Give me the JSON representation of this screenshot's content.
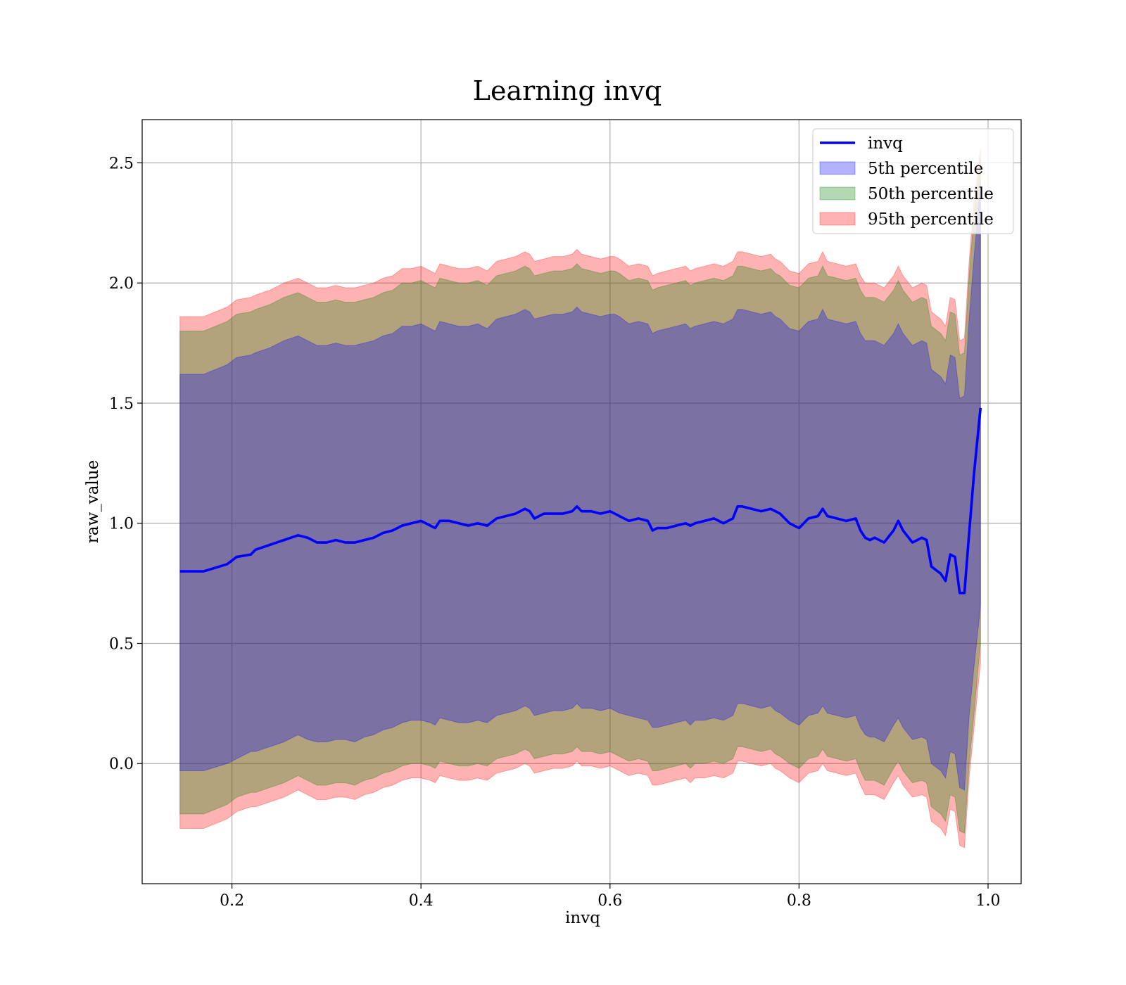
{
  "chart_data": {
    "type": "line",
    "title": "Learning invq",
    "xlabel": "invq",
    "ylabel": "raw_value",
    "xlim": [
      0.105,
      1.035
    ],
    "ylim": [
      -0.5,
      2.68
    ],
    "xticks": [
      0.2,
      0.4,
      0.6,
      0.8,
      1.0
    ],
    "xtick_labels": [
      "0.2",
      "0.4",
      "0.6",
      "0.8",
      "1.0"
    ],
    "yticks": [
      0.0,
      0.5,
      1.0,
      1.5,
      2.0,
      2.5
    ],
    "ytick_labels": [
      "0.0",
      "0.5",
      "1.0",
      "1.5",
      "2.0",
      "2.5"
    ],
    "grid": true,
    "legend_position": "top-right",
    "x": [
      0.145,
      0.17,
      0.195,
      0.205,
      0.22,
      0.225,
      0.24,
      0.255,
      0.27,
      0.28,
      0.29,
      0.3,
      0.31,
      0.32,
      0.33,
      0.34,
      0.35,
      0.36,
      0.37,
      0.38,
      0.39,
      0.4,
      0.41,
      0.415,
      0.42,
      0.43,
      0.44,
      0.45,
      0.46,
      0.47,
      0.48,
      0.49,
      0.5,
      0.51,
      0.515,
      0.52,
      0.53,
      0.54,
      0.55,
      0.56,
      0.565,
      0.57,
      0.58,
      0.59,
      0.6,
      0.605,
      0.61,
      0.62,
      0.63,
      0.64,
      0.645,
      0.65,
      0.66,
      0.67,
      0.68,
      0.685,
      0.69,
      0.7,
      0.71,
      0.72,
      0.73,
      0.735,
      0.74,
      0.75,
      0.76,
      0.77,
      0.775,
      0.78,
      0.79,
      0.8,
      0.81,
      0.82,
      0.825,
      0.83,
      0.84,
      0.85,
      0.86,
      0.865,
      0.87,
      0.875,
      0.88,
      0.89,
      0.9,
      0.905,
      0.91,
      0.92,
      0.93,
      0.935,
      0.94,
      0.95,
      0.955,
      0.96,
      0.965,
      0.97,
      0.975,
      0.98,
      0.985,
      0.99,
      0.992
    ],
    "series": [
      {
        "name": "invq",
        "color": "#0000ff",
        "values": [
          0.8,
          0.8,
          0.83,
          0.86,
          0.87,
          0.89,
          0.91,
          0.93,
          0.95,
          0.94,
          0.92,
          0.92,
          0.93,
          0.92,
          0.92,
          0.93,
          0.94,
          0.96,
          0.97,
          0.99,
          1.0,
          1.01,
          0.99,
          0.98,
          1.01,
          1.01,
          1.0,
          0.99,
          1.0,
          0.99,
          1.02,
          1.03,
          1.04,
          1.06,
          1.05,
          1.02,
          1.04,
          1.04,
          1.04,
          1.05,
          1.07,
          1.05,
          1.05,
          1.04,
          1.05,
          1.04,
          1.03,
          1.01,
          1.02,
          1.01,
          0.97,
          0.98,
          0.98,
          0.99,
          1.0,
          0.99,
          1.0,
          1.01,
          1.02,
          1.0,
          1.02,
          1.07,
          1.07,
          1.06,
          1.05,
          1.06,
          1.05,
          1.04,
          1.0,
          0.98,
          1.02,
          1.03,
          1.06,
          1.03,
          1.02,
          1.01,
          1.02,
          0.97,
          0.94,
          0.93,
          0.94,
          0.92,
          0.97,
          1.01,
          0.97,
          0.92,
          0.94,
          0.93,
          0.82,
          0.79,
          0.76,
          0.87,
          0.86,
          0.71,
          0.71,
          0.96,
          1.2,
          1.4,
          1.48
        ]
      },
      {
        "name": "5th percentile",
        "color": "#0000ff",
        "lower": [
          -0.03,
          -0.03,
          0.0,
          0.02,
          0.05,
          0.05,
          0.07,
          0.09,
          0.12,
          0.1,
          0.09,
          0.09,
          0.1,
          0.1,
          0.09,
          0.11,
          0.12,
          0.14,
          0.15,
          0.17,
          0.18,
          0.18,
          0.17,
          0.16,
          0.19,
          0.18,
          0.17,
          0.17,
          0.18,
          0.17,
          0.2,
          0.21,
          0.22,
          0.24,
          0.23,
          0.2,
          0.21,
          0.22,
          0.22,
          0.23,
          0.25,
          0.23,
          0.23,
          0.22,
          0.23,
          0.22,
          0.21,
          0.2,
          0.19,
          0.18,
          0.15,
          0.15,
          0.16,
          0.17,
          0.18,
          0.16,
          0.18,
          0.18,
          0.19,
          0.18,
          0.2,
          0.25,
          0.25,
          0.24,
          0.23,
          0.24,
          0.22,
          0.21,
          0.18,
          0.16,
          0.2,
          0.21,
          0.24,
          0.21,
          0.2,
          0.19,
          0.2,
          0.15,
          0.12,
          0.11,
          0.11,
          0.09,
          0.16,
          0.19,
          0.15,
          0.1,
          0.11,
          0.1,
          0.0,
          -0.03,
          -0.06,
          0.05,
          0.04,
          -0.1,
          -0.11,
          0.2,
          0.4,
          0.58,
          0.66
        ],
        "upper": [
          1.62,
          1.62,
          1.66,
          1.69,
          1.7,
          1.71,
          1.73,
          1.76,
          1.78,
          1.76,
          1.74,
          1.74,
          1.75,
          1.74,
          1.74,
          1.75,
          1.76,
          1.78,
          1.79,
          1.82,
          1.82,
          1.83,
          1.81,
          1.8,
          1.84,
          1.83,
          1.82,
          1.82,
          1.83,
          1.81,
          1.85,
          1.86,
          1.87,
          1.89,
          1.88,
          1.85,
          1.86,
          1.87,
          1.87,
          1.88,
          1.9,
          1.88,
          1.87,
          1.86,
          1.87,
          1.87,
          1.86,
          1.83,
          1.84,
          1.83,
          1.79,
          1.8,
          1.81,
          1.82,
          1.83,
          1.81,
          1.82,
          1.83,
          1.84,
          1.83,
          1.85,
          1.89,
          1.89,
          1.88,
          1.87,
          1.88,
          1.86,
          1.85,
          1.81,
          1.8,
          1.84,
          1.85,
          1.89,
          1.85,
          1.84,
          1.83,
          1.84,
          1.79,
          1.76,
          1.76,
          1.76,
          1.74,
          1.79,
          1.83,
          1.79,
          1.74,
          1.76,
          1.75,
          1.64,
          1.61,
          1.58,
          1.7,
          1.69,
          1.52,
          1.53,
          1.85,
          2.1,
          2.32,
          2.42
        ]
      },
      {
        "name": "50th percentile",
        "color": "#008000",
        "lower": [
          -0.21,
          -0.21,
          -0.17,
          -0.14,
          -0.12,
          -0.12,
          -0.1,
          -0.08,
          -0.05,
          -0.07,
          -0.09,
          -0.09,
          -0.08,
          -0.08,
          -0.09,
          -0.07,
          -0.06,
          -0.04,
          -0.03,
          -0.01,
          0.0,
          0.0,
          -0.01,
          -0.02,
          0.01,
          0.0,
          -0.01,
          -0.01,
          0.0,
          -0.01,
          0.02,
          0.03,
          0.04,
          0.06,
          0.05,
          0.02,
          0.03,
          0.04,
          0.04,
          0.05,
          0.07,
          0.05,
          0.05,
          0.04,
          0.05,
          0.04,
          0.03,
          0.01,
          0.02,
          0.01,
          -0.03,
          -0.03,
          -0.02,
          -0.01,
          0.0,
          -0.02,
          0.0,
          0.0,
          0.01,
          0.0,
          0.02,
          0.07,
          0.07,
          0.06,
          0.05,
          0.06,
          0.04,
          0.03,
          0.0,
          -0.02,
          0.02,
          0.03,
          0.06,
          0.03,
          0.02,
          0.01,
          0.02,
          -0.03,
          -0.07,
          -0.07,
          -0.07,
          -0.09,
          -0.02,
          0.01,
          -0.03,
          -0.08,
          -0.07,
          -0.08,
          -0.18,
          -0.21,
          -0.24,
          -0.13,
          -0.14,
          -0.28,
          -0.29,
          0.0,
          0.2,
          0.42,
          0.5
        ],
        "upper": [
          1.8,
          1.8,
          1.84,
          1.87,
          1.88,
          1.89,
          1.91,
          1.94,
          1.96,
          1.94,
          1.92,
          1.92,
          1.93,
          1.92,
          1.92,
          1.93,
          1.94,
          1.96,
          1.97,
          2.0,
          2.0,
          2.01,
          1.99,
          1.98,
          2.02,
          2.01,
          2.0,
          2.0,
          2.01,
          1.99,
          2.03,
          2.04,
          2.05,
          2.07,
          2.06,
          2.03,
          2.04,
          2.05,
          2.05,
          2.06,
          2.08,
          2.06,
          2.05,
          2.04,
          2.05,
          2.05,
          2.04,
          2.01,
          2.02,
          2.01,
          1.97,
          1.98,
          1.99,
          2.0,
          2.01,
          1.99,
          2.0,
          2.01,
          2.02,
          2.01,
          2.03,
          2.07,
          2.07,
          2.06,
          2.05,
          2.06,
          2.04,
          2.03,
          1.99,
          1.98,
          2.02,
          2.03,
          2.07,
          2.03,
          2.02,
          2.01,
          2.02,
          1.97,
          1.94,
          1.94,
          1.94,
          1.92,
          1.97,
          2.01,
          1.97,
          1.92,
          1.94,
          1.93,
          1.82,
          1.79,
          1.76,
          1.88,
          1.87,
          1.7,
          1.71,
          2.03,
          2.28,
          2.45,
          2.52
        ]
      },
      {
        "name": "95th percentile",
        "color": "#ff0000",
        "lower": [
          -0.27,
          -0.27,
          -0.23,
          -0.2,
          -0.18,
          -0.18,
          -0.16,
          -0.14,
          -0.11,
          -0.13,
          -0.15,
          -0.15,
          -0.14,
          -0.14,
          -0.15,
          -0.13,
          -0.12,
          -0.1,
          -0.09,
          -0.07,
          -0.06,
          -0.06,
          -0.07,
          -0.08,
          -0.05,
          -0.06,
          -0.07,
          -0.07,
          -0.06,
          -0.07,
          -0.04,
          -0.03,
          -0.02,
          0.0,
          -0.01,
          -0.04,
          -0.03,
          -0.02,
          -0.02,
          -0.01,
          0.01,
          -0.01,
          -0.01,
          -0.02,
          -0.01,
          -0.02,
          -0.03,
          -0.05,
          -0.04,
          -0.05,
          -0.09,
          -0.09,
          -0.08,
          -0.07,
          -0.06,
          -0.08,
          -0.06,
          -0.06,
          -0.05,
          -0.06,
          -0.04,
          0.01,
          0.01,
          0.0,
          -0.01,
          0.0,
          -0.02,
          -0.03,
          -0.06,
          -0.08,
          -0.04,
          -0.03,
          0.0,
          -0.03,
          -0.04,
          -0.05,
          -0.04,
          -0.09,
          -0.13,
          -0.13,
          -0.13,
          -0.15,
          -0.08,
          -0.05,
          -0.09,
          -0.14,
          -0.13,
          -0.14,
          -0.24,
          -0.27,
          -0.3,
          -0.19,
          -0.2,
          -0.34,
          -0.35,
          -0.06,
          0.14,
          0.34,
          0.42
        ],
        "upper": [
          1.86,
          1.86,
          1.9,
          1.93,
          1.94,
          1.95,
          1.97,
          2.0,
          2.02,
          2.0,
          1.98,
          1.98,
          1.99,
          1.98,
          1.98,
          1.99,
          2.0,
          2.02,
          2.03,
          2.06,
          2.06,
          2.07,
          2.05,
          2.04,
          2.08,
          2.07,
          2.06,
          2.06,
          2.07,
          2.05,
          2.09,
          2.1,
          2.11,
          2.13,
          2.12,
          2.09,
          2.1,
          2.11,
          2.11,
          2.12,
          2.14,
          2.12,
          2.11,
          2.1,
          2.11,
          2.11,
          2.1,
          2.07,
          2.08,
          2.07,
          2.03,
          2.04,
          2.05,
          2.06,
          2.07,
          2.05,
          2.06,
          2.07,
          2.08,
          2.07,
          2.09,
          2.13,
          2.13,
          2.12,
          2.11,
          2.12,
          2.1,
          2.09,
          2.05,
          2.04,
          2.08,
          2.09,
          2.13,
          2.09,
          2.08,
          2.07,
          2.08,
          2.03,
          2.0,
          2.0,
          2.0,
          1.98,
          2.03,
          2.07,
          2.03,
          1.98,
          2.0,
          1.99,
          1.88,
          1.85,
          1.82,
          1.94,
          1.93,
          1.76,
          1.77,
          2.09,
          2.34,
          2.5,
          2.56
        ]
      }
    ]
  }
}
